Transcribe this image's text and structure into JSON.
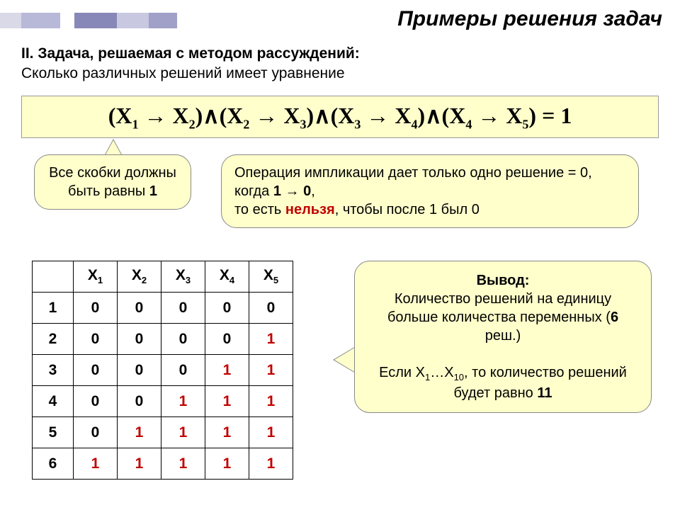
{
  "deco_colors": [
    "#d9d9e8",
    "#b8b8d8",
    "#ffffff",
    "#8888b8",
    "#c8c8e0",
    "#a0a0c8"
  ],
  "deco_widths": [
    30,
    55,
    20,
    60,
    45,
    40
  ],
  "title": "Примеры решения задач",
  "subtitle_line1_bold": "II. Задача, решаемая с методом рассуждений:",
  "subtitle_line2": "Сколько различных решений имеет уравнение",
  "equation_html": "(X<sub>1</sub> → X<sub>2</sub>)∧(X<sub>2</sub> → X<sub>3</sub>)∧(X<sub>3</sub> → X<sub>4</sub>)∧(X<sub>4</sub> → X<sub>5</sub>) = 1",
  "callout1_html": "Все скобки должны быть равны <span class=\"bold\">1</span>",
  "callout2_html": "Операция импликации дает только одно решение = 0, когда <span class=\"bold\">1 → 0</span>,<br>то есть <span class=\"red\">нельзя</span>, чтобы после 1 был 0",
  "callout3_html": "<span class=\"bold\">Вывод:</span><br>Количество решений на единицу больше количества переменных (<span class=\"bold\">6</span> реш.)<br><br>Если X<sub>1</sub>…X<sub>10</sub>, то количество решений будет равно <span class=\"bold\">11</span>",
  "table": {
    "headers": [
      "",
      "X1",
      "X2",
      "X3",
      "X4",
      "X5"
    ],
    "header_subs": [
      "",
      "1",
      "2",
      "3",
      "4",
      "5"
    ],
    "rows": [
      {
        "n": "1",
        "cells": [
          "0",
          "0",
          "0",
          "0",
          "0"
        ],
        "red": []
      },
      {
        "n": "2",
        "cells": [
          "0",
          "0",
          "0",
          "0",
          "1"
        ],
        "red": [
          4
        ]
      },
      {
        "n": "3",
        "cells": [
          "0",
          "0",
          "0",
          "1",
          "1"
        ],
        "red": [
          3,
          4
        ]
      },
      {
        "n": "4",
        "cells": [
          "0",
          "0",
          "1",
          "1",
          "1"
        ],
        "red": [
          2,
          3,
          4
        ]
      },
      {
        "n": "5",
        "cells": [
          "0",
          "1",
          "1",
          "1",
          "1"
        ],
        "red": [
          1,
          2,
          3,
          4
        ]
      },
      {
        "n": "6",
        "cells": [
          "1",
          "1",
          "1",
          "1",
          "1"
        ],
        "red": [
          0,
          1,
          2,
          3,
          4
        ]
      }
    ]
  }
}
